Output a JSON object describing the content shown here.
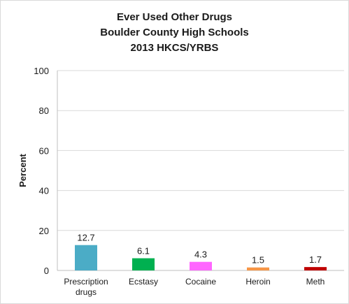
{
  "chart_data": {
    "type": "bar",
    "title": [
      "Ever Used Other Drugs",
      "Boulder County High Schools",
      "2013 HKCS/YRBS"
    ],
    "xlabel": "",
    "ylabel": "Percent",
    "ylim": [
      0,
      100
    ],
    "yticks": [
      "0",
      "20",
      "40",
      "60",
      "80",
      "100"
    ],
    "ytick_values": [
      0,
      20,
      40,
      60,
      80,
      100
    ],
    "grid": true,
    "categories": [
      [
        "Prescription",
        "drugs"
      ],
      [
        "Ecstasy"
      ],
      [
        "Cocaine"
      ],
      [
        "Heroin"
      ],
      [
        "Meth"
      ]
    ],
    "values": [
      12.7,
      6.1,
      4.3,
      1.5,
      1.7
    ],
    "data_labels": [
      "12.7",
      "6.1",
      "4.3",
      "1.5",
      "1.7"
    ],
    "colors": [
      "#4bacc6",
      "#00b050",
      "#ff66ff",
      "#f79646",
      "#c00000"
    ]
  }
}
